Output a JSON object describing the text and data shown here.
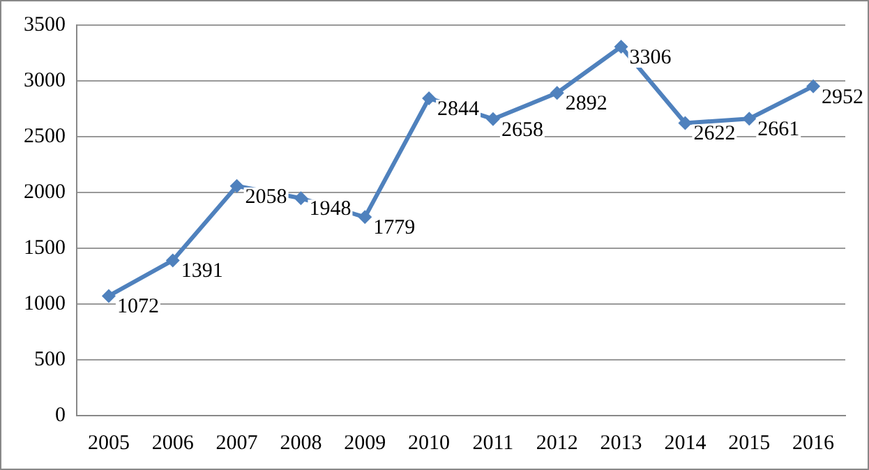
{
  "chart_data": {
    "type": "line",
    "categories": [
      "2005",
      "2006",
      "2007",
      "2008",
      "2009",
      "2010",
      "2011",
      "2012",
      "2013",
      "2014",
      "2015",
      "2016"
    ],
    "series": [
      {
        "color": "#4f81bd",
        "values": [
          1072,
          1391,
          2058,
          1948,
          1779,
          2844,
          2658,
          2892,
          3306,
          2622,
          2661,
          2952
        ]
      }
    ],
    "ylim": [
      0,
      3500
    ],
    "yticks": [
      0,
      500,
      1000,
      1500,
      2000,
      2500,
      3000,
      3500
    ],
    "grid": "y",
    "legend": false,
    "marker": "diamond",
    "line_style": "solid",
    "data_labels": true
  }
}
